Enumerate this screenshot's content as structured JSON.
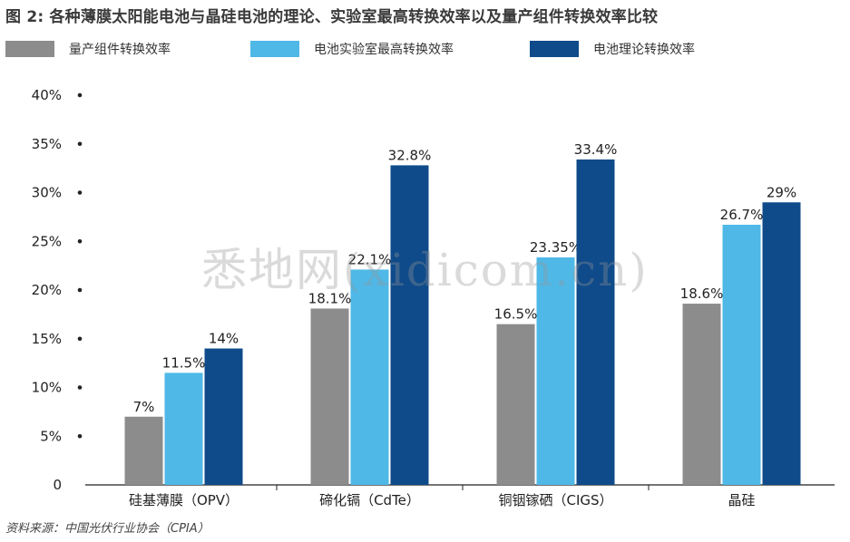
{
  "title": "图 2: 各种薄膜太阳能电池与晶硅电池的理论、实验室最高转换效率以及量产组件转换效率比较",
  "source": "资料来源：中国光伏行业协会（CPIA）",
  "watermark": "悉地网(xidicom.cn)",
  "colors": {
    "series1": "#8c8c8d",
    "series2": "#4fb8e7",
    "series3": "#0f4b8a",
    "axis": "#222222"
  },
  "legend": [
    {
      "label": "量产组件转换效率"
    },
    {
      "label": "电池实验室最高转换效率"
    },
    {
      "label": "电池理论转换效率"
    }
  ],
  "chart_data": {
    "type": "bar",
    "categories": [
      "硅基薄膜（OPV）",
      "碲化镉（CdTe）",
      "铜铟镓硒（CIGS）",
      "晶硅"
    ],
    "series": [
      {
        "name": "量产组件转换效率",
        "values": [
          7,
          18.1,
          16.5,
          18.6
        ],
        "labels": [
          "7%",
          "18.1%",
          "16.5%",
          "18.6%"
        ]
      },
      {
        "name": "电池实验室最高转换效率",
        "values": [
          11.5,
          22.1,
          23.35,
          26.7
        ],
        "labels": [
          "11.5%",
          "22.1%",
          "23.35%",
          "26.7%"
        ]
      },
      {
        "name": "电池理论转换效率",
        "values": [
          14,
          32.8,
          33.4,
          29
        ],
        "labels": [
          "14%",
          "32.8%",
          "33.4%",
          "29%"
        ]
      }
    ],
    "yticks": [
      "0",
      "5%",
      "10%",
      "15%",
      "20%",
      "25%",
      "30%",
      "35%",
      "40%"
    ],
    "ylim": [
      0,
      40
    ],
    "ytick_step": 5,
    "grid": false,
    "legend_position": "top"
  }
}
